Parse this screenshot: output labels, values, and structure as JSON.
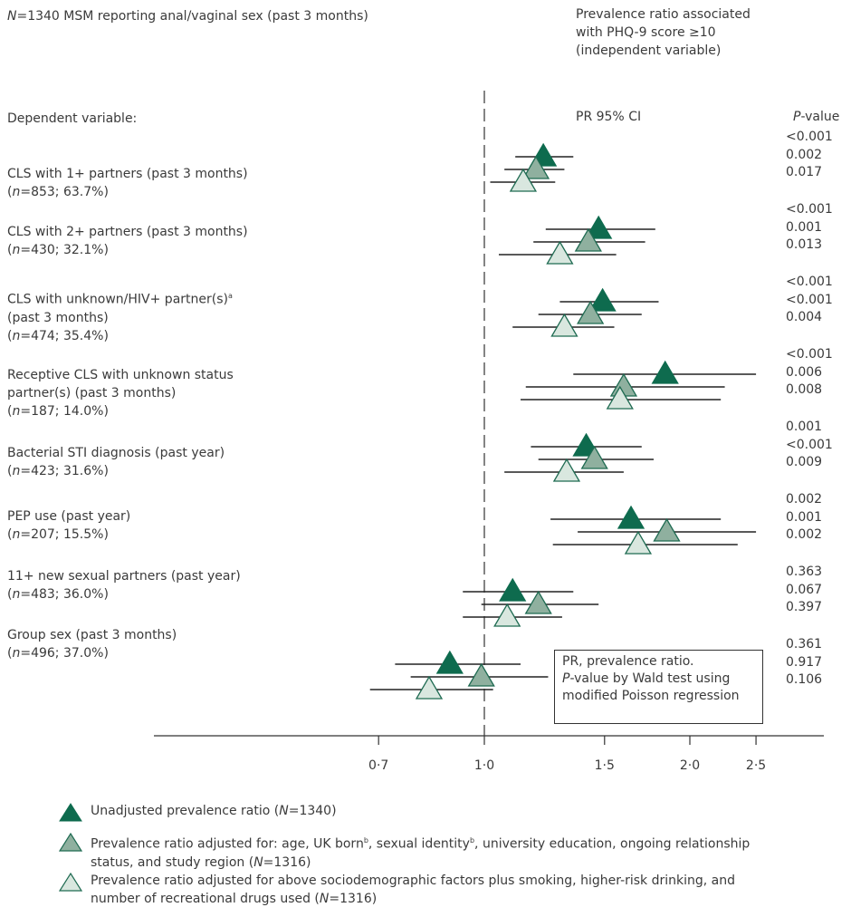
{
  "header": {
    "sample_prefix": "N",
    "sample_suffix": "=1340 MSM reporting anal/vaginal sex (past 3 months)",
    "right_title": "Prevalence ratio associated\nwith PHQ-9 score ≥10\n(independent variable)"
  },
  "columns": {
    "dependent_label": "Dependent variable:",
    "pr_ci": "PR 95% CI",
    "pvalue_italic": "P",
    "pvalue_rest": "-value"
  },
  "note": {
    "line1": "PR, prevalence ratio.",
    "line2_italic": "P",
    "line2_rest": "-value by Wald test using",
    "line3": "modified Poisson regression"
  },
  "legend": {
    "unadjusted": "Unadjusted prevalence ratio (",
    "unadjusted_n": "N",
    "unadjusted_end": "=1340)",
    "adjusted1": "Prevalence ratio adjusted for: age, UK born",
    "adjusted1_b1": "b",
    "adjusted1_mid": ", sexual identity",
    "adjusted1_b2": "b",
    "adjusted1_end": ", university education, ongoing relationship",
    "adjusted1_line2a": "status, and study region (",
    "adjusted1_n": "N",
    "adjusted1_line2b": "=1316)",
    "adjusted2": "Prevalence ratio adjusted for above sociodemographic factors plus smoking, higher-risk drinking, and",
    "adjusted2_line2a": "number of recreational drugs used (",
    "adjusted2_n": "N",
    "adjusted2_line2b": "=1316)"
  },
  "colors": {
    "unadjusted": "#0e6b4e",
    "adjusted1": "#8fb09f",
    "adjusted2": "#d9e7df",
    "stroke": "#1f6b52",
    "ci": "#222222"
  },
  "chart_data": {
    "type": "forest",
    "x_scale": "log",
    "xlim": [
      0.5,
      3.0
    ],
    "reference_line": 1.0,
    "x_ticks": [
      0.7,
      1.0,
      1.5,
      2.0,
      2.5
    ],
    "x_tick_labels": [
      "0·7",
      "1·0",
      "1·5",
      "2·0",
      "2·5"
    ],
    "series": [
      {
        "key": "unadjusted"
      },
      {
        "key": "adjusted1"
      },
      {
        "key": "adjusted2"
      }
    ],
    "rows": [
      {
        "label": [
          "CLS with 1+ partners (past 3 months)"
        ],
        "n_text": "=853; 63.7%)",
        "estimates": [
          {
            "pr": 1.22,
            "lo": 1.11,
            "hi": 1.35,
            "p": "<0.001"
          },
          {
            "pr": 1.19,
            "lo": 1.07,
            "hi": 1.31,
            "p": "0.002"
          },
          {
            "pr": 1.14,
            "lo": 1.02,
            "hi": 1.27,
            "p": "0.017"
          }
        ]
      },
      {
        "label": [
          "CLS with 2+ partners (past 3 months)"
        ],
        "n_text": "=430; 32.1%)",
        "estimates": [
          {
            "pr": 1.47,
            "lo": 1.23,
            "hi": 1.78,
            "p": "<0.001"
          },
          {
            "pr": 1.42,
            "lo": 1.18,
            "hi": 1.72,
            "p": "0.001"
          },
          {
            "pr": 1.29,
            "lo": 1.05,
            "hi": 1.56,
            "p": "0.013"
          }
        ]
      },
      {
        "label": [
          "CLS with unknown/HIV+ partner(s)",
          "(past 3 months)"
        ],
        "label_sup": "a",
        "n_text": "=474; 35.4%)",
        "estimates": [
          {
            "pr": 1.49,
            "lo": 1.29,
            "hi": 1.8,
            "p": "<0.001"
          },
          {
            "pr": 1.43,
            "lo": 1.2,
            "hi": 1.7,
            "p": "<0.001"
          },
          {
            "pr": 1.31,
            "lo": 1.1,
            "hi": 1.55,
            "p": "0.004"
          }
        ]
      },
      {
        "label": [
          "Receptive CLS with unknown status",
          "partner(s) (past 3 months)"
        ],
        "n_text": "=187; 14.0%)",
        "estimates": [
          {
            "pr": 1.84,
            "lo": 1.35,
            "hi": 2.5,
            "p": "<0.001"
          },
          {
            "pr": 1.6,
            "lo": 1.15,
            "hi": 2.25,
            "p": "0.006"
          },
          {
            "pr": 1.58,
            "lo": 1.13,
            "hi": 2.22,
            "p": "0.008"
          }
        ]
      },
      {
        "label": [
          "Bacterial STI diagnosis (past year)"
        ],
        "n_text": "=423; 31.6%)",
        "estimates": [
          {
            "pr": 1.41,
            "lo": 1.17,
            "hi": 1.7,
            "p": "0.001"
          },
          {
            "pr": 1.45,
            "lo": 1.2,
            "hi": 1.77,
            "p": "<0.001"
          },
          {
            "pr": 1.32,
            "lo": 1.07,
            "hi": 1.6,
            "p": "0.009"
          }
        ]
      },
      {
        "label": [
          "PEP use (past year)"
        ],
        "n_text": "=207; 15.5%)",
        "estimates": [
          {
            "pr": 1.64,
            "lo": 1.25,
            "hi": 2.22,
            "p": "0.002"
          },
          {
            "pr": 1.85,
            "lo": 1.37,
            "hi": 2.5,
            "p": "0.001"
          },
          {
            "pr": 1.68,
            "lo": 1.26,
            "hi": 2.35,
            "p": "0.002"
          }
        ]
      },
      {
        "label": [
          "11+ new sexual partners (past year)"
        ],
        "n_text": "=483; 36.0%)",
        "estimates": [
          {
            "pr": 1.1,
            "lo": 0.93,
            "hi": 1.35,
            "p": "0.363"
          },
          {
            "pr": 1.2,
            "lo": 0.99,
            "hi": 1.47,
            "p": "0.067"
          },
          {
            "pr": 1.08,
            "lo": 0.93,
            "hi": 1.3,
            "p": "0.397"
          }
        ]
      },
      {
        "label": [
          "Group sex (past 3 months)"
        ],
        "n_text": "=496; 37.0%)",
        "estimates": [
          {
            "pr": 0.89,
            "lo": 0.74,
            "hi": 1.13,
            "p": "0.361"
          },
          {
            "pr": 0.99,
            "lo": 0.78,
            "hi": 1.24,
            "p": "0.917"
          },
          {
            "pr": 0.83,
            "lo": 0.68,
            "hi": 1.03,
            "p": "0.106"
          }
        ]
      }
    ]
  }
}
